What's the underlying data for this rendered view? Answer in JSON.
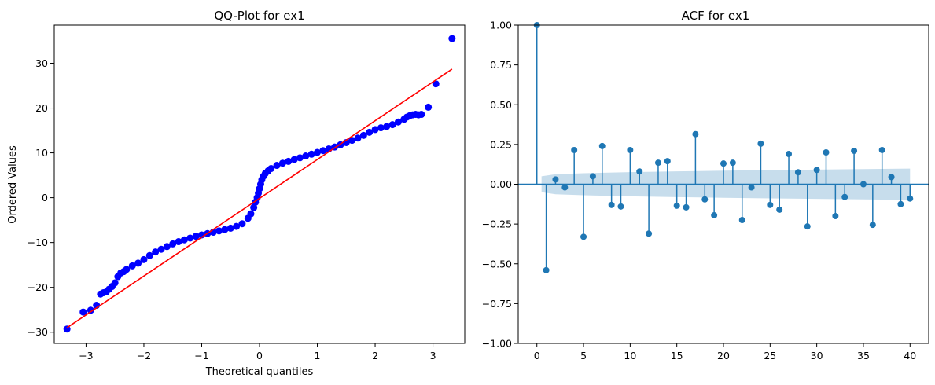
{
  "chart_data": [
    {
      "type": "scatter",
      "title": "QQ-Plot for ex1",
      "xlabel": "Theoretical quantiles",
      "ylabel": "Ordered Values",
      "xlim": [
        -3.55,
        3.55
      ],
      "ylim": [
        -32.5,
        38.5
      ],
      "xticks": [
        -3,
        -2,
        -1,
        0,
        1,
        2,
        3
      ],
      "xtick_labels": [
        "−3",
        "−2",
        "−1",
        "0",
        "1",
        "2",
        "3"
      ],
      "yticks": [
        -30,
        -20,
        -10,
        0,
        10,
        20,
        30
      ],
      "ytick_labels": [
        "−30",
        "−20",
        "−10",
        "0",
        "10",
        "20",
        "30"
      ],
      "grid": false,
      "point_color": "#0000ff",
      "line_color": "#ff0000",
      "reference_line": {
        "x": [
          -3.33,
          3.33
        ],
        "y": [
          -29.0,
          28.7
        ]
      },
      "points": {
        "x": [
          -3.33,
          -3.05,
          -2.92,
          -2.82,
          -2.75,
          -2.7,
          -2.65,
          -2.6,
          -2.55,
          -2.5,
          -2.45,
          -2.4,
          -2.35,
          -2.3,
          -2.2,
          -2.1,
          -2.0,
          -1.9,
          -1.8,
          -1.7,
          -1.6,
          -1.5,
          -1.4,
          -1.3,
          -1.2,
          -1.1,
          -1.0,
          -0.9,
          -0.8,
          -0.7,
          -0.6,
          -0.5,
          -0.4,
          -0.3,
          -0.2,
          -0.15,
          -0.1,
          -0.07,
          -0.04,
          -0.02,
          0.0,
          0.02,
          0.04,
          0.07,
          0.1,
          0.15,
          0.2,
          0.3,
          0.4,
          0.5,
          0.6,
          0.7,
          0.8,
          0.9,
          1.0,
          1.1,
          1.2,
          1.3,
          1.4,
          1.5,
          1.6,
          1.7,
          1.8,
          1.9,
          2.0,
          2.1,
          2.2,
          2.3,
          2.4,
          2.5,
          2.55,
          2.6,
          2.65,
          2.7,
          2.75,
          2.8,
          2.92,
          3.05,
          3.33
        ],
        "y": [
          -29.3,
          -25.5,
          -25.1,
          -24.0,
          -21.5,
          -21.2,
          -21.0,
          -20.4,
          -19.8,
          -19.0,
          -17.6,
          -16.8,
          -16.5,
          -16.0,
          -15.2,
          -14.6,
          -13.8,
          -12.9,
          -12.1,
          -11.5,
          -10.9,
          -10.3,
          -9.8,
          -9.4,
          -9.0,
          -8.6,
          -8.3,
          -8.0,
          -7.7,
          -7.4,
          -7.1,
          -6.8,
          -6.4,
          -5.8,
          -4.6,
          -3.6,
          -2.2,
          -1.0,
          0.0,
          1.0,
          2.0,
          3.0,
          4.0,
          4.8,
          5.4,
          6.0,
          6.5,
          7.2,
          7.7,
          8.1,
          8.5,
          8.9,
          9.3,
          9.7,
          10.1,
          10.5,
          10.9,
          11.3,
          11.8,
          12.3,
          12.8,
          13.3,
          13.9,
          14.6,
          15.2,
          15.6,
          15.9,
          16.3,
          16.9,
          17.5,
          18.0,
          18.3,
          18.5,
          18.6,
          18.5,
          18.6,
          20.2,
          25.4,
          35.5
        ]
      }
    },
    {
      "type": "stem",
      "title": "ACF for ex1",
      "xlabel": "",
      "ylabel": "",
      "xlim": [
        -2.0,
        42.0
      ],
      "ylim": [
        -1.0,
        1.0
      ],
      "xticks": [
        0,
        5,
        10,
        15,
        20,
        25,
        30,
        35,
        40
      ],
      "xtick_labels": [
        "0",
        "5",
        "10",
        "15",
        "20",
        "25",
        "30",
        "35",
        "40"
      ],
      "yticks": [
        -1.0,
        -0.75,
        -0.5,
        -0.25,
        0.0,
        0.25,
        0.5,
        0.75,
        1.0
      ],
      "ytick_labels": [
        "−1.00",
        "−0.75",
        "−0.50",
        "−0.25",
        "0.00",
        "0.25",
        "0.50",
        "0.75",
        "1.00"
      ],
      "grid": false,
      "color": "#1f77b4",
      "band_color": "#1f77b4",
      "lags": [
        0,
        1,
        2,
        3,
        4,
        5,
        6,
        7,
        8,
        9,
        10,
        11,
        12,
        13,
        14,
        15,
        16,
        17,
        18,
        19,
        20,
        21,
        22,
        23,
        24,
        25,
        26,
        27,
        28,
        29,
        30,
        31,
        32,
        33,
        34,
        35,
        36,
        37,
        38,
        39,
        40
      ],
      "values": [
        1.0,
        -0.54,
        0.03,
        -0.02,
        0.215,
        -0.33,
        0.05,
        0.24,
        -0.13,
        -0.14,
        0.215,
        0.08,
        -0.31,
        0.135,
        0.145,
        -0.135,
        -0.145,
        0.315,
        -0.095,
        -0.195,
        0.13,
        0.135,
        -0.225,
        -0.02,
        0.255,
        -0.13,
        -0.16,
        0.19,
        0.075,
        -0.265,
        0.09,
        0.2,
        -0.2,
        -0.08,
        0.21,
        0.0,
        -0.255,
        0.215,
        0.045,
        -0.125,
        -0.09
      ],
      "confidence_band": {
        "lags": [
          0.5,
          2,
          5,
          10,
          15,
          20,
          25,
          30,
          35,
          40
        ],
        "upper": [
          0.05,
          0.063,
          0.069,
          0.076,
          0.081,
          0.085,
          0.089,
          0.092,
          0.095,
          0.098
        ],
        "lower": [
          -0.05,
          -0.063,
          -0.069,
          -0.076,
          -0.081,
          -0.085,
          -0.089,
          -0.092,
          -0.095,
          -0.098
        ]
      }
    }
  ]
}
